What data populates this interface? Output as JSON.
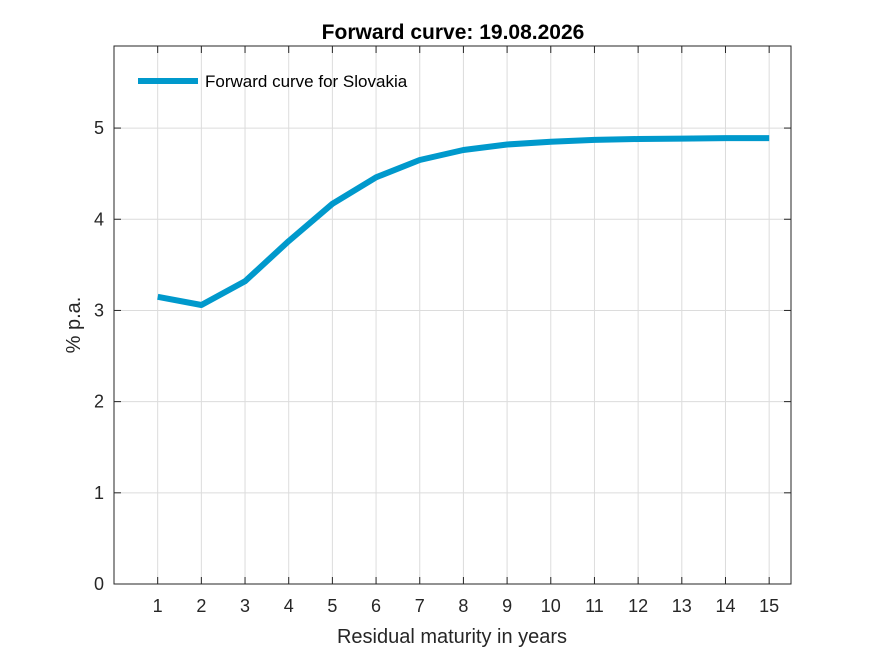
{
  "chart_data": {
    "type": "line",
    "title": "Forward curve: 19.08.2026",
    "xlabel": "Residual maturity in years",
    "ylabel": "% p.a.",
    "xlim": [
      0,
      15.5
    ],
    "ylim": [
      0,
      5.9
    ],
    "x_ticks": [
      1,
      2,
      3,
      4,
      5,
      6,
      7,
      8,
      9,
      10,
      11,
      12,
      13,
      14,
      15
    ],
    "y_ticks": [
      0,
      1,
      2,
      3,
      4,
      5
    ],
    "grid": true,
    "legend_position": "top-left",
    "series": [
      {
        "name": "Forward curve for Slovakia",
        "color": "#0099CC",
        "x": [
          1,
          2,
          3,
          4,
          5,
          6,
          7,
          8,
          9,
          10,
          11,
          12,
          13,
          14,
          15
        ],
        "y": [
          3.15,
          3.06,
          3.32,
          3.76,
          4.17,
          4.46,
          4.65,
          4.76,
          4.82,
          4.85,
          4.87,
          4.88,
          4.885,
          4.89,
          4.89
        ]
      }
    ]
  }
}
